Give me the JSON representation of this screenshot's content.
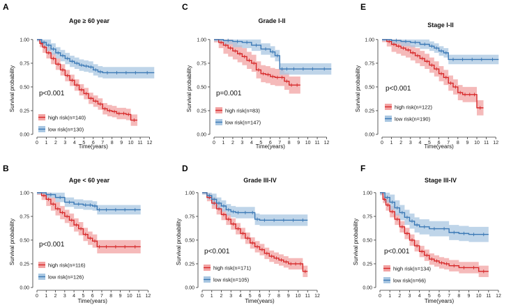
{
  "figure": {
    "colors": {
      "high": "#d62728",
      "low": "#3a78b5",
      "high_band": "#f2a3a3",
      "low_band": "#a9c7e2",
      "axis": "#333333"
    }
  },
  "chart_data": [
    {
      "panel_letter": "A",
      "type": "line",
      "title": "Age ≥ 60 year",
      "xlabel": "Time(years)",
      "ylabel": "Survival probability",
      "xlim": [
        0,
        13
      ],
      "ylim": [
        0,
        1.05
      ],
      "xticks": [
        "0",
        "1",
        "2",
        "3",
        "4",
        "5",
        "6",
        "7",
        "8",
        "9",
        "10",
        "11",
        "12"
      ],
      "yticks": [
        "0.00",
        "0.25",
        "0.50",
        "0.75",
        "1.00"
      ],
      "pvalue": "p<0.001",
      "legend": [
        "high risk(n=140)",
        "low risk(n=130)"
      ],
      "series": [
        {
          "name": "high risk(n=140)",
          "color": "high",
          "x": [
            0,
            0.3,
            0.6,
            1,
            1.5,
            2,
            2.5,
            3,
            3.5,
            4,
            4.5,
            5,
            5.5,
            6,
            6.5,
            7,
            7.5,
            8,
            8.5,
            9,
            9.5,
            10,
            10.7
          ],
          "y": [
            1.0,
            0.96,
            0.92,
            0.86,
            0.8,
            0.74,
            0.68,
            0.62,
            0.57,
            0.52,
            0.47,
            0.43,
            0.38,
            0.35,
            0.32,
            0.27,
            0.25,
            0.24,
            0.22,
            0.22,
            0.21,
            0.15,
            0.15
          ],
          "band_hw": 0.06
        },
        {
          "name": "low risk(n=130)",
          "color": "low",
          "x": [
            0,
            0.5,
            1,
            1.5,
            2,
            2.5,
            3,
            3.5,
            4,
            4.5,
            5,
            5.5,
            6,
            6.5,
            7,
            8,
            9,
            10,
            11,
            12.5
          ],
          "y": [
            1.0,
            0.97,
            0.94,
            0.9,
            0.86,
            0.83,
            0.8,
            0.77,
            0.75,
            0.73,
            0.72,
            0.71,
            0.68,
            0.66,
            0.65,
            0.65,
            0.65,
            0.65,
            0.65,
            0.65
          ],
          "band_hw": 0.06
        }
      ]
    },
    {
      "panel_letter": "B",
      "type": "line",
      "title": "Age  < 60 year",
      "xlabel": "Time(years)",
      "ylabel": "Survival probability",
      "xlim": [
        0,
        12.5
      ],
      "ylim": [
        0,
        1.05
      ],
      "xticks": [
        "0",
        "1",
        "2",
        "3",
        "4",
        "5",
        "6",
        "7",
        "8",
        "9",
        "10",
        "11",
        "12"
      ],
      "yticks": [
        "0.00",
        "0.25",
        "0.50",
        "0.75",
        "1.00"
      ],
      "pvalue": "p<0.001",
      "legend": [
        "high risk(n=116)",
        "low risk(n=126)"
      ],
      "series": [
        {
          "name": "high risk(n=116)",
          "color": "high",
          "x": [
            0,
            0.5,
            1,
            1.5,
            2,
            2.5,
            3,
            3.5,
            4,
            4.5,
            5,
            5.5,
            6,
            6.5,
            7,
            8,
            9,
            10,
            11.2
          ],
          "y": [
            1.0,
            0.97,
            0.93,
            0.88,
            0.83,
            0.79,
            0.75,
            0.71,
            0.66,
            0.62,
            0.56,
            0.52,
            0.49,
            0.43,
            0.43,
            0.43,
            0.43,
            0.43,
            0.43
          ],
          "band_hw": 0.07
        },
        {
          "name": "low risk(n=126)",
          "color": "low",
          "x": [
            0,
            1,
            2,
            3,
            4,
            5,
            5.5,
            6,
            6.5,
            7,
            8,
            9,
            10,
            11.2
          ],
          "y": [
            1.0,
            0.98,
            0.95,
            0.9,
            0.88,
            0.87,
            0.87,
            0.86,
            0.82,
            0.82,
            0.82,
            0.82,
            0.82,
            0.82
          ],
          "band_hw": 0.05
        }
      ]
    },
    {
      "panel_letter": "C",
      "type": "line",
      "title": "Grade I-II",
      "xlabel": "Time(years)",
      "ylabel": "Survival probability",
      "xlim": [
        0,
        13
      ],
      "ylim": [
        0,
        1.05
      ],
      "xticks": [
        "0",
        "1",
        "2",
        "3",
        "4",
        "5",
        "6",
        "7",
        "8",
        "9",
        "10",
        "11",
        "12"
      ],
      "yticks": [
        "0.00",
        "0.25",
        "0.50",
        "0.75",
        "1.00"
      ],
      "pvalue": "p=0.001",
      "legend": [
        "high risk(n=83)",
        "low risk(n=147)"
      ],
      "series": [
        {
          "name": "high risk(n=83)",
          "color": "high",
          "x": [
            0,
            0.5,
            1,
            1.5,
            2,
            2.5,
            3,
            3.5,
            4,
            4.5,
            5,
            5.5,
            6,
            6.5,
            7,
            7.5,
            8,
            8.5,
            9.2
          ],
          "y": [
            1.0,
            0.97,
            0.94,
            0.91,
            0.88,
            0.85,
            0.82,
            0.78,
            0.75,
            0.68,
            0.64,
            0.63,
            0.61,
            0.6,
            0.6,
            0.56,
            0.52,
            0.52,
            0.52
          ],
          "band_hw": 0.09
        },
        {
          "name": "low risk(n=147)",
          "color": "low",
          "x": [
            0,
            1,
            2,
            3,
            4,
            5,
            6,
            6.5,
            7,
            7.5,
            8,
            9,
            10,
            11,
            12.5
          ],
          "y": [
            1.0,
            0.99,
            0.98,
            0.97,
            0.94,
            0.9,
            0.87,
            0.83,
            0.69,
            0.69,
            0.69,
            0.69,
            0.69,
            0.69,
            0.69
          ],
          "band_hw": 0.06
        }
      ]
    },
    {
      "panel_letter": "D",
      "type": "line",
      "title": "Grade III-IV",
      "xlabel": "Time(years)",
      "ylabel": "Survival probability",
      "xlim": [
        0,
        12
      ],
      "ylim": [
        0,
        1.05
      ],
      "xticks": [
        "0",
        "1",
        "2",
        "3",
        "4",
        "5",
        "6",
        "7",
        "8",
        "9",
        "10",
        "11",
        "12"
      ],
      "yticks": [
        "0.00",
        "0.25",
        "0.50",
        "0.75",
        "1.00"
      ],
      "pvalue": "p<0.001",
      "legend": [
        "high risk(n=171)",
        "low risk(n=105)"
      ],
      "series": [
        {
          "name": "high risk(n=171)",
          "color": "high",
          "x": [
            0,
            0.5,
            1,
            1.5,
            2,
            2.5,
            3,
            3.5,
            4,
            4.5,
            5,
            5.5,
            6,
            6.5,
            7,
            7.5,
            8,
            8.5,
            9,
            9.5,
            10,
            10.5,
            11
          ],
          "y": [
            1.0,
            0.95,
            0.89,
            0.83,
            0.77,
            0.72,
            0.67,
            0.62,
            0.57,
            0.52,
            0.47,
            0.43,
            0.4,
            0.36,
            0.33,
            0.31,
            0.29,
            0.27,
            0.25,
            0.25,
            0.25,
            0.17,
            0.17
          ],
          "band_hw": 0.06
        },
        {
          "name": "low risk(n=105)",
          "color": "low",
          "x": [
            0,
            0.5,
            1,
            1.5,
            2,
            2.5,
            3,
            3.5,
            4,
            5,
            5.5,
            6,
            7,
            8,
            9,
            10,
            11
          ],
          "y": [
            1.0,
            0.97,
            0.93,
            0.89,
            0.86,
            0.82,
            0.8,
            0.79,
            0.79,
            0.79,
            0.72,
            0.71,
            0.71,
            0.71,
            0.71,
            0.71,
            0.71
          ],
          "band_hw": 0.06
        }
      ]
    },
    {
      "panel_letter": "E",
      "type": "line",
      "title": "Stage I-II",
      "xlabel": "Time(years)",
      "ylabel": "Survival probability",
      "xlim": [
        0,
        12.5
      ],
      "ylim": [
        0,
        1.05
      ],
      "xticks": [
        "0",
        "1",
        "2",
        "3",
        "4",
        "5",
        "6",
        "7",
        "8",
        "9",
        "10",
        "11",
        "12"
      ],
      "yticks": [
        "0.00",
        "0.25",
        "0.50",
        "0.75",
        "1.00"
      ],
      "pvalue": "p<0.001",
      "legend": [
        "high risk(n=122)",
        "low risk(n=190)"
      ],
      "series": [
        {
          "name": "high risk(n=122)",
          "color": "high",
          "x": [
            0,
            0.5,
            1,
            1.5,
            2,
            2.5,
            3,
            3.5,
            4,
            4.5,
            5,
            5.5,
            6,
            6.5,
            7,
            7.5,
            8,
            8.5,
            9,
            9.5,
            10,
            10.7
          ],
          "y": [
            1.0,
            0.98,
            0.95,
            0.93,
            0.91,
            0.89,
            0.86,
            0.83,
            0.8,
            0.77,
            0.73,
            0.69,
            0.64,
            0.6,
            0.54,
            0.5,
            0.44,
            0.42,
            0.42,
            0.42,
            0.28,
            0.28
          ],
          "band_hw": 0.08
        },
        {
          "name": "low risk(n=190)",
          "color": "low",
          "x": [
            0,
            1,
            2,
            3,
            4,
            5,
            5.5,
            6,
            6.5,
            7,
            8,
            9,
            10,
            11,
            12.3
          ],
          "y": [
            1.0,
            0.99,
            0.98,
            0.97,
            0.95,
            0.93,
            0.91,
            0.88,
            0.86,
            0.79,
            0.79,
            0.79,
            0.79,
            0.79,
            0.79
          ],
          "band_hw": 0.05
        }
      ]
    },
    {
      "panel_letter": "F",
      "type": "line",
      "title": "Stage III-IV",
      "xlabel": "Time(years)",
      "ylabel": "Survival probability",
      "xlim": [
        0,
        12
      ],
      "ylim": [
        0,
        1.05
      ],
      "xticks": [
        "0",
        "1",
        "2",
        "3",
        "4",
        "5",
        "6",
        "7",
        "8",
        "9",
        "10",
        "11",
        "12"
      ],
      "yticks": [
        "0.00",
        "0.25",
        "0.50",
        "0.75",
        "1.00"
      ],
      "pvalue": "p<0.001",
      "legend": [
        "high risk(n=134)",
        "low risk(n=66)"
      ],
      "series": [
        {
          "name": "high risk(n=134)",
          "color": "high",
          "x": [
            0,
            0.3,
            0.6,
            1,
            1.5,
            2,
            2.5,
            3,
            3.5,
            4,
            4.5,
            5,
            5.5,
            6,
            6.5,
            7,
            8,
            9,
            10,
            11
          ],
          "y": [
            1.0,
            0.93,
            0.87,
            0.8,
            0.72,
            0.64,
            0.57,
            0.5,
            0.44,
            0.38,
            0.34,
            0.3,
            0.28,
            0.26,
            0.25,
            0.23,
            0.21,
            0.21,
            0.17,
            0.17
          ],
          "band_hw": 0.06
        },
        {
          "name": "low risk(n=66)",
          "color": "low",
          "x": [
            0,
            0.5,
            1,
            1.5,
            2,
            2.5,
            3,
            3.5,
            4,
            5,
            6,
            7,
            8,
            9,
            10,
            11
          ],
          "y": [
            1.0,
            0.95,
            0.9,
            0.84,
            0.79,
            0.74,
            0.7,
            0.66,
            0.64,
            0.62,
            0.62,
            0.58,
            0.57,
            0.56,
            0.56,
            0.56
          ],
          "band_hw": 0.08
        }
      ]
    }
  ]
}
